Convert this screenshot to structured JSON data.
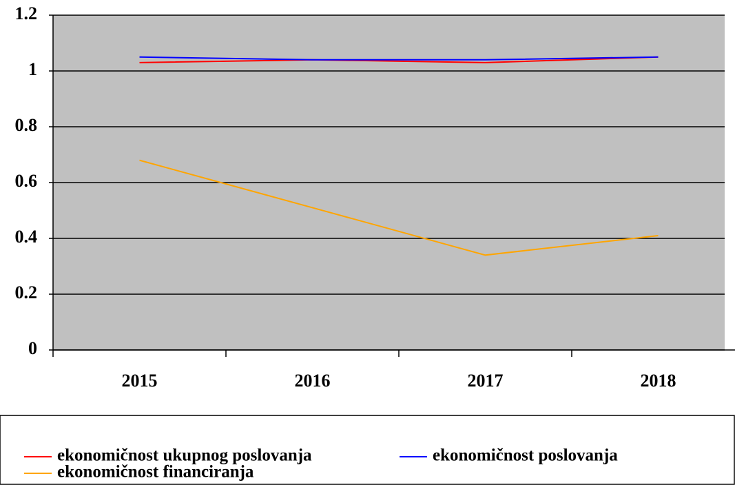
{
  "chart_data": {
    "type": "line",
    "categories": [
      "2015",
      "2016",
      "2017",
      "2018"
    ],
    "series": [
      {
        "name": "ekonomičnost ukupnog poslovanja",
        "color": "#ff0000",
        "values": [
          1.03,
          1.04,
          1.03,
          1.05
        ]
      },
      {
        "name": "ekonomičnost poslovanja",
        "color": "#0000ff",
        "values": [
          1.05,
          1.04,
          1.04,
          1.05
        ]
      },
      {
        "name": "ekonomičnost financiranja",
        "color": "#ffa500",
        "values": [
          0.68,
          0.51,
          0.34,
          0.41
        ]
      }
    ],
    "ylim": [
      0,
      1.2
    ],
    "yticks": [
      0,
      0.2,
      0.4,
      0.6,
      0.8,
      1,
      1.2
    ],
    "grid": true,
    "plot_background": "#c0c0c0",
    "legend": "bottom"
  }
}
